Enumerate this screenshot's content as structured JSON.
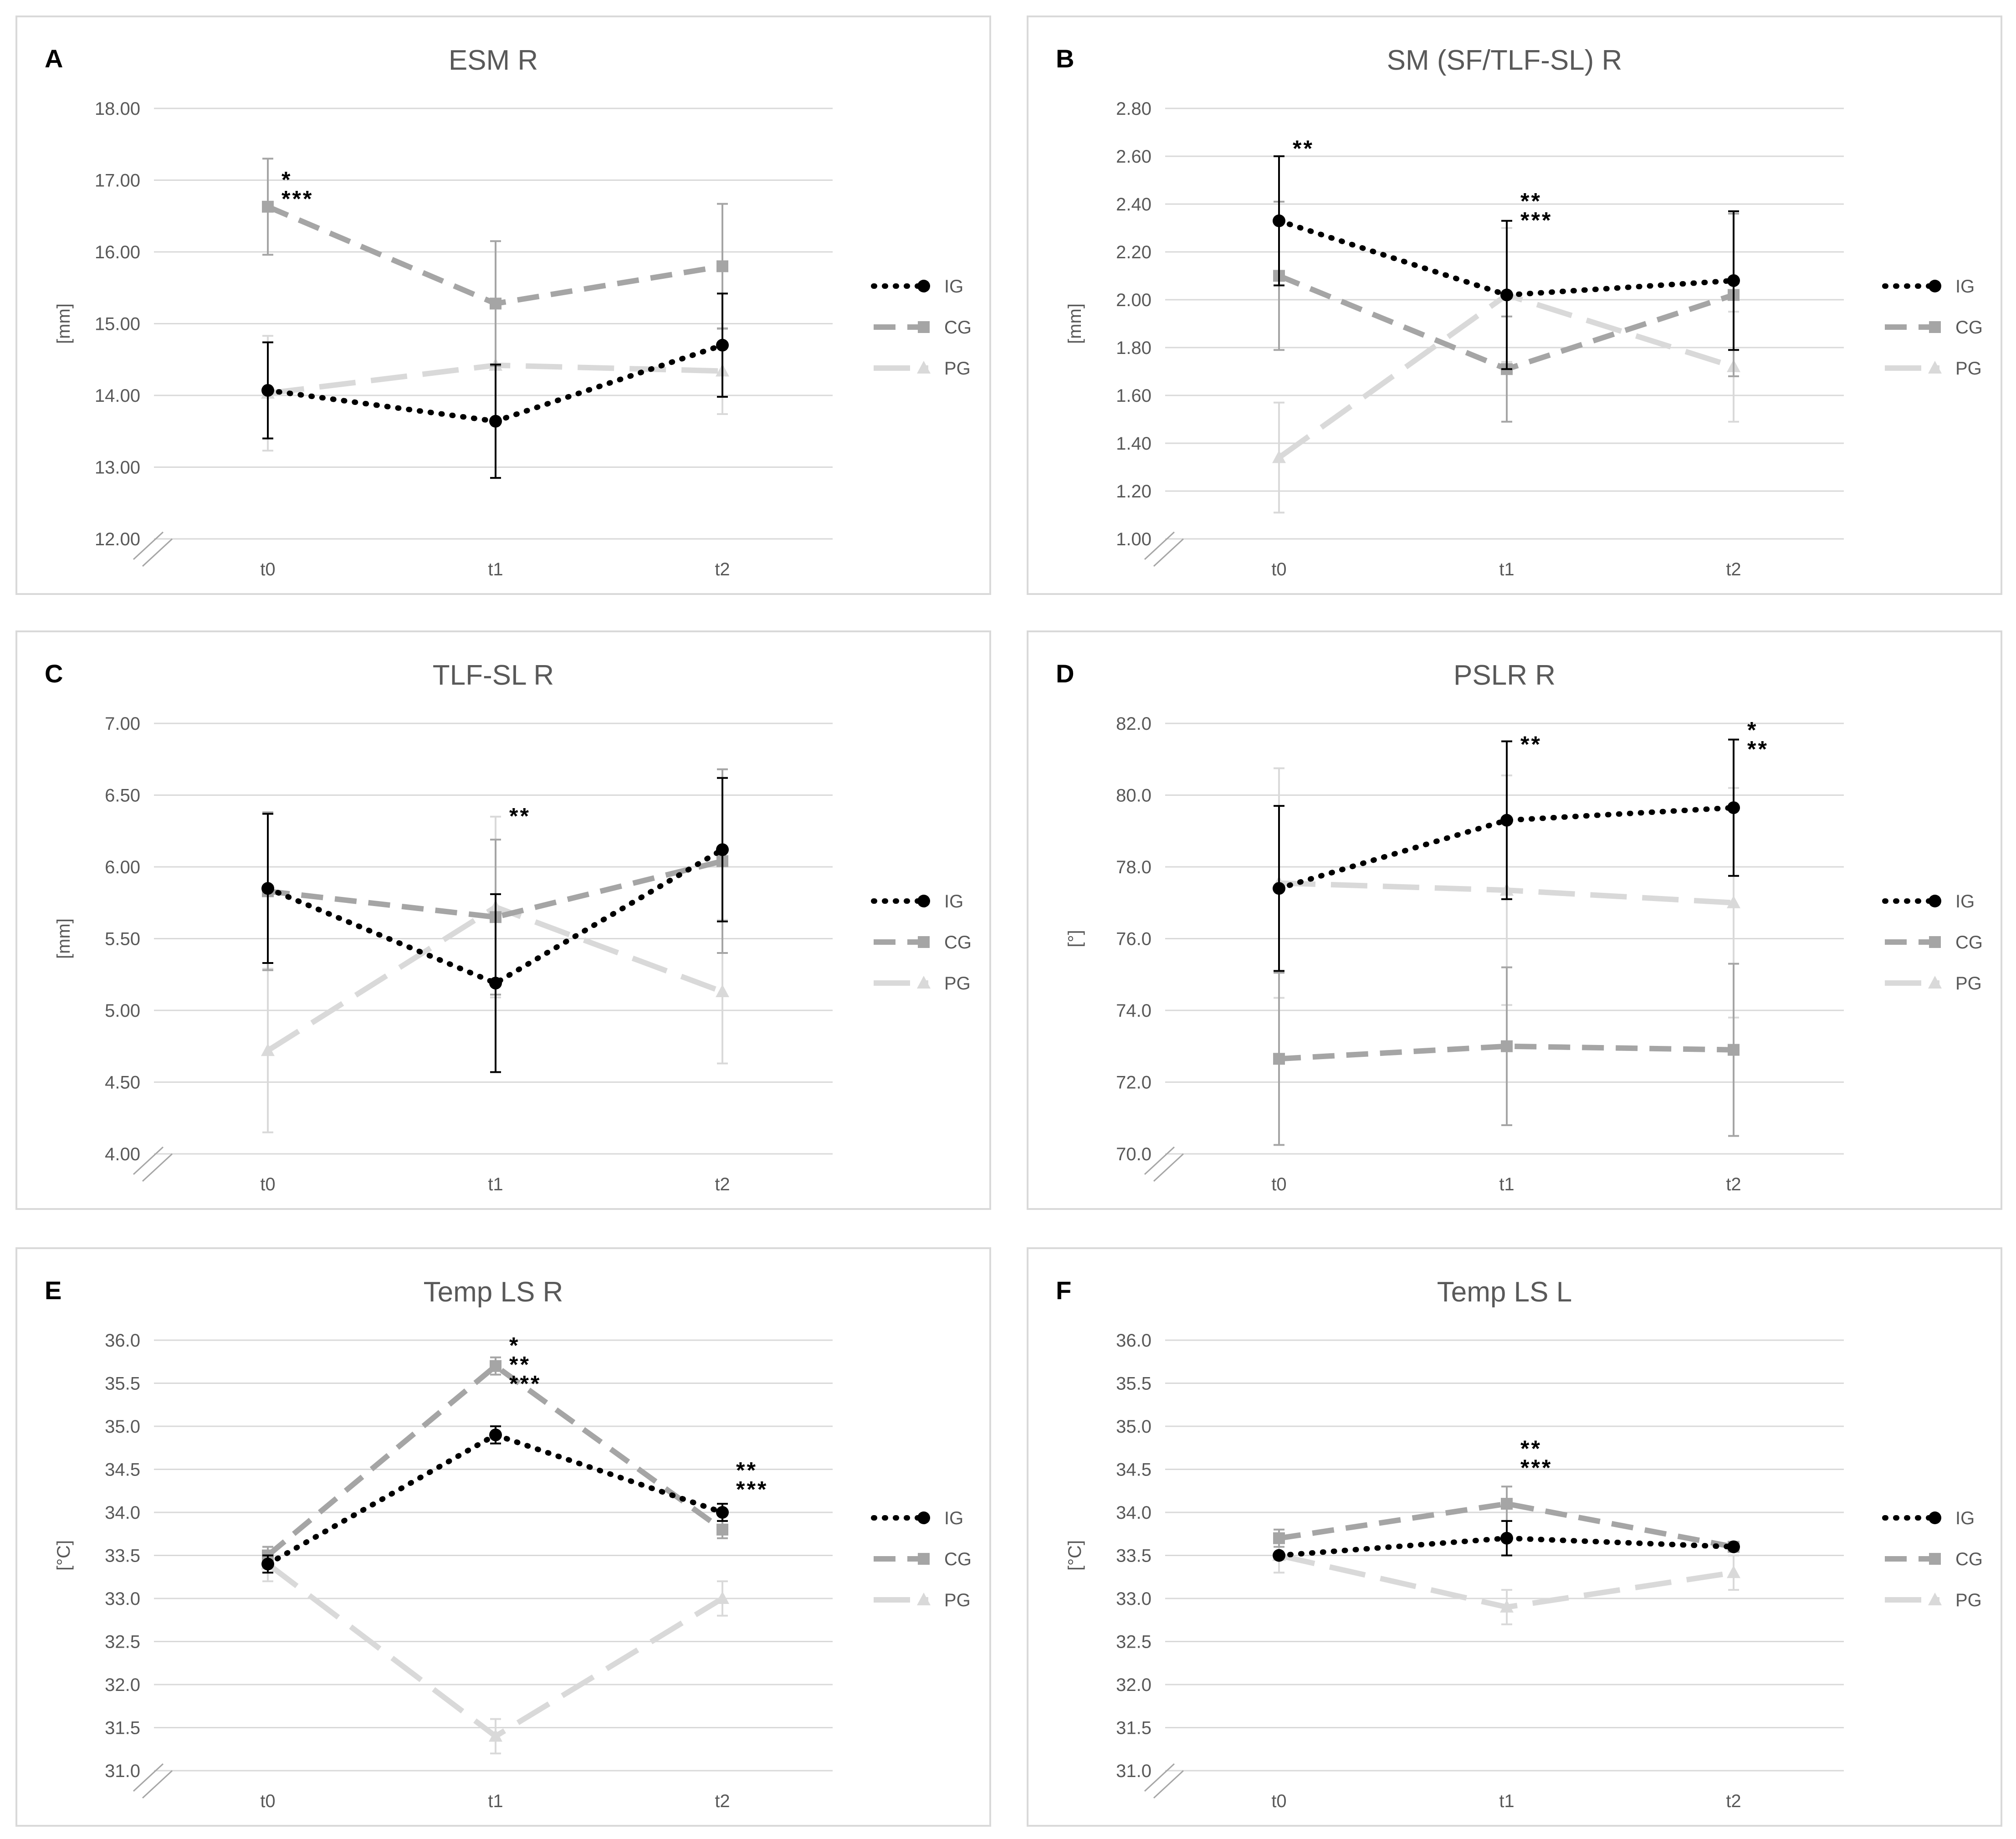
{
  "figure": {
    "legend_labels": [
      "IG",
      "CG",
      "PG"
    ]
  },
  "chart_data": [
    {
      "letter": "A",
      "title": "ESM R",
      "type": "line",
      "ylabel": "[mm]",
      "ylim": [
        12,
        18
      ],
      "ystep": 1,
      "ydec": 2,
      "categories": [
        "t0",
        "t1",
        "t2"
      ],
      "series": [
        {
          "name": "IG",
          "values": [
            14.07,
            13.64,
            14.7
          ],
          "err": [
            0.67,
            0.79,
            0.72
          ]
        },
        {
          "name": "CG",
          "values": [
            16.63,
            15.28,
            15.8
          ],
          "err": [
            0.67,
            0.87,
            0.87
          ]
        },
        {
          "name": "PG",
          "values": [
            14.03,
            14.42,
            14.34
          ],
          "err": [
            0.8,
            0.0,
            0.6
          ]
        }
      ],
      "annotations": [
        {
          "cat": 0,
          "y": 16.9,
          "lines": [
            "*",
            "***"
          ]
        }
      ]
    },
    {
      "letter": "B",
      "title": "SM (SF/TLF-SL) R",
      "type": "line",
      "ylabel": "[mm]",
      "ylim": [
        1.0,
        2.8
      ],
      "ystep": 0.2,
      "ydec": 2,
      "categories": [
        "t0",
        "t1",
        "t2"
      ],
      "series": [
        {
          "name": "IG",
          "values": [
            2.33,
            2.02,
            2.08
          ],
          "err": [
            0.27,
            0.31,
            0.29
          ]
        },
        {
          "name": "CG",
          "values": [
            2.1,
            1.71,
            2.02
          ],
          "err": [
            0.31,
            0.22,
            0.34
          ]
        },
        {
          "name": "PG",
          "values": [
            1.34,
            2.02,
            1.72
          ],
          "err": [
            0.23,
            0.28,
            0.23
          ]
        }
      ],
      "annotations": [
        {
          "cat": 0,
          "y": 2.6,
          "lines": [
            "**"
          ]
        },
        {
          "cat": 1,
          "y": 2.38,
          "lines": [
            "**",
            "***"
          ]
        }
      ]
    },
    {
      "letter": "C",
      "title": "TLF-SL R",
      "type": "line",
      "ylabel": "[mm]",
      "ylim": [
        4.0,
        7.0
      ],
      "ystep": 0.5,
      "ydec": 2,
      "categories": [
        "t0",
        "t1",
        "t2"
      ],
      "series": [
        {
          "name": "IG",
          "values": [
            5.85,
            5.19,
            6.12
          ],
          "err": [
            0.52,
            0.62,
            0.5
          ]
        },
        {
          "name": "CG",
          "values": [
            5.83,
            5.65,
            6.04
          ],
          "err": [
            0.55,
            0.54,
            0.64
          ]
        },
        {
          "name": "PG",
          "values": [
            4.72,
            5.72,
            5.13
          ],
          "err": [
            0.57,
            0.63,
            0.5
          ]
        }
      ],
      "annotations": [
        {
          "cat": 1,
          "y": 6.3,
          "lines": [
            "**"
          ]
        }
      ]
    },
    {
      "letter": "D",
      "title": "PSLR R",
      "type": "line",
      "ylabel": "[°]",
      "ylim": [
        70.0,
        82.0
      ],
      "ystep": 2,
      "ydec": 1,
      "categories": [
        "t0",
        "t1",
        "t2"
      ],
      "series": [
        {
          "name": "IG",
          "values": [
            77.4,
            79.3,
            79.65
          ],
          "err": [
            2.3,
            2.2,
            1.9
          ]
        },
        {
          "name": "CG",
          "values": [
            72.65,
            73.0,
            72.9
          ],
          "err": [
            2.4,
            2.2,
            2.4
          ]
        },
        {
          "name": "PG",
          "values": [
            77.55,
            77.35,
            77.0
          ],
          "err": [
            3.2,
            3.2,
            3.2
          ]
        }
      ],
      "annotations": [
        {
          "cat": 1,
          "y": 81.2,
          "lines": [
            "**"
          ]
        },
        {
          "cat": 2,
          "y": 81.6,
          "lines": [
            "*",
            "**"
          ]
        }
      ]
    },
    {
      "letter": "E",
      "title": "Temp LS R",
      "type": "line",
      "ylabel": "[°C]",
      "ylim": [
        31.0,
        36.0
      ],
      "ystep": 0.5,
      "ydec": 1,
      "categories": [
        "t0",
        "t1",
        "t2"
      ],
      "series": [
        {
          "name": "IG",
          "values": [
            33.4,
            34.9,
            34.0
          ],
          "err": [
            0.1,
            0.1,
            0.1
          ]
        },
        {
          "name": "CG",
          "values": [
            33.5,
            35.7,
            33.8
          ],
          "err": [
            0.1,
            0.1,
            0.1
          ]
        },
        {
          "name": "PG",
          "values": [
            33.4,
            31.4,
            33.0
          ],
          "err": [
            0.2,
            0.2,
            0.2
          ]
        }
      ],
      "annotations": [
        {
          "cat": 1,
          "y": 35.85,
          "lines": [
            "*",
            "**",
            "***"
          ]
        },
        {
          "cat": 2,
          "y": 34.4,
          "lines": [
            "**",
            "***"
          ]
        }
      ]
    },
    {
      "letter": "F",
      "title": "Temp LS L",
      "type": "line",
      "ylabel": "[°C]",
      "ylim": [
        31.0,
        36.0
      ],
      "ystep": 0.5,
      "ydec": 1,
      "categories": [
        "t0",
        "t1",
        "t2"
      ],
      "series": [
        {
          "name": "IG",
          "values": [
            33.5,
            33.7,
            33.6
          ],
          "err": [
            0.0,
            0.2,
            0.0
          ]
        },
        {
          "name": "CG",
          "values": [
            33.7,
            34.1,
            33.6
          ],
          "err": [
            0.1,
            0.2,
            0.05
          ]
        },
        {
          "name": "PG",
          "values": [
            33.5,
            32.9,
            33.3
          ],
          "err": [
            0.2,
            0.2,
            0.2
          ]
        }
      ],
      "annotations": [
        {
          "cat": 1,
          "y": 34.65,
          "lines": [
            "**",
            "***"
          ]
        }
      ]
    }
  ]
}
